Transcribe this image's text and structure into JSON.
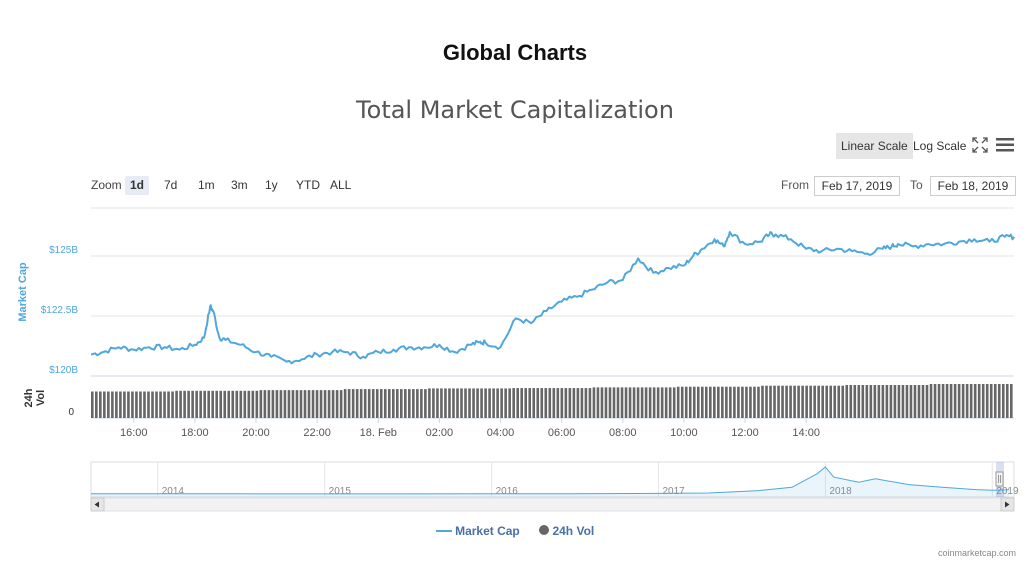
{
  "page": {
    "title": "Global Charts",
    "credit": "coinmarketcap.com"
  },
  "controls": {
    "linear_scale": "Linear Scale",
    "log_scale": "Log Scale",
    "zoom_label": "Zoom",
    "zoom_options": [
      "1d",
      "7d",
      "1m",
      "3m",
      "1y",
      "YTD",
      "ALL"
    ],
    "zoom_selected": "1d",
    "from_label": "From",
    "to_label": "To",
    "from_value": "Feb 17, 2019",
    "to_value": "Feb 18, 2019"
  },
  "colors": {
    "line": "#4fa7dc",
    "bar": "#666666",
    "axis_text": "#4fa7dc",
    "legend_text": "#4a6fa5",
    "scale_active_bg": "#e6e6e6",
    "zoom_active_bg": "#e6ebf5"
  },
  "icons": [
    "fullscreen-icon",
    "menu-icon",
    "scroll-left-icon",
    "scroll-right-icon"
  ],
  "chart_data": {
    "type": "line",
    "title": "Total Market Capitalization",
    "ylabel": "Market Cap",
    "ylabel2": "24h Vol",
    "y_ticks": [
      "$120B",
      "$122.5B",
      "$125B"
    ],
    "ylim": [
      120000000000,
      127000000000
    ],
    "vol_ticks": [
      "0"
    ],
    "x_ticks": [
      "16:00",
      "18:00",
      "20:00",
      "22:00",
      "18. Feb",
      "02:00",
      "04:00",
      "06:00",
      "08:00",
      "10:00",
      "12:00",
      "14:00"
    ],
    "series": [
      {
        "name": "Market Cap",
        "x_hours": [
          14.6,
          15.0,
          15.5,
          16.0,
          16.5,
          17.0,
          17.5,
          18.0,
          18.3,
          18.5,
          18.6,
          18.8,
          19.0,
          19.5,
          20.0,
          20.5,
          21.0,
          21.5,
          22.0,
          22.5,
          23.0,
          23.5,
          24.0,
          24.5,
          25.0,
          25.5,
          26.0,
          26.5,
          27.0,
          27.3,
          27.5,
          28.0,
          28.5,
          29.0,
          29.5,
          30.0,
          30.5,
          31.0,
          31.5,
          32.0,
          32.5,
          33.0,
          33.5,
          34.0,
          34.3,
          34.6,
          35.0,
          35.3,
          35.5,
          36.0,
          36.5,
          36.8,
          37.0,
          37.5,
          38.0,
          38.5,
          39.0,
          39.5,
          40.0,
          40.5,
          40.8,
          41.0,
          41.5,
          42.0,
          42.5,
          43.0,
          43.5,
          44.0,
          44.5,
          44.8
        ],
        "values_billion": [
          120.9,
          121.0,
          121.2,
          121.1,
          121.2,
          121.2,
          121.1,
          121.3,
          121.6,
          122.9,
          122.7,
          121.6,
          121.5,
          121.3,
          121.0,
          120.8,
          120.6,
          120.7,
          120.9,
          121.0,
          121.0,
          120.8,
          121.0,
          121.1,
          121.2,
          121.2,
          121.3,
          121.0,
          121.3,
          121.4,
          121.4,
          121.2,
          122.4,
          122.2,
          122.7,
          123.1,
          123.3,
          123.6,
          123.9,
          124.0,
          124.9,
          124.3,
          124.5,
          124.6,
          125.0,
          125.3,
          125.7,
          125.4,
          126.0,
          125.5,
          125.6,
          125.9,
          125.9,
          125.7,
          125.3,
          125.2,
          125.3,
          125.2,
          125.1,
          125.3,
          125.4,
          125.5,
          125.4,
          125.5,
          125.5,
          125.6,
          125.7,
          125.6,
          125.8,
          125.8
        ],
        "values": [
          120900000000,
          121000000000,
          121200000000,
          121100000000,
          121200000000,
          121200000000,
          121100000000,
          121300000000,
          121600000000,
          122900000000,
          122700000000,
          121600000000,
          121500000000,
          121300000000,
          121000000000,
          120800000000,
          120600000000,
          120700000000,
          120900000000,
          121000000000,
          121000000000,
          120800000000,
          121000000000,
          121100000000,
          121200000000,
          121200000000,
          121300000000,
          121000000000,
          121300000000,
          121400000000,
          121400000000,
          121200000000,
          122400000000,
          122200000000,
          122700000000,
          123100000000,
          123300000000,
          123600000000,
          123900000000,
          124000000000,
          124900000000,
          124300000000,
          124500000000,
          124600000000,
          125000000000,
          125300000000,
          125700000000,
          125400000000,
          126000000000,
          125500000000,
          125600000000,
          125900000000,
          125900000000,
          125700000000,
          125300000000,
          125200000000,
          125300000000,
          125200000000,
          125100000000,
          125300000000,
          125400000000,
          125500000000,
          125400000000,
          125500000000,
          125500000000,
          125600000000,
          125700000000,
          125600000000,
          125800000000,
          125800000000
        ]
      },
      {
        "name": "24h Vol",
        "type": "bar",
        "start_hour": 14.6,
        "end_hour": 44.8,
        "relative_values": [
          0.78,
          0.8,
          0.82,
          0.85,
          0.87,
          0.88,
          0.9,
          0.92,
          0.95,
          0.97,
          1.0
        ]
      }
    ],
    "navigator": {
      "x_labels": [
        "2014",
        "2015",
        "2016",
        "2017",
        "2018",
        "2019"
      ],
      "x_years": [
        2013.6,
        2014.0,
        2014.5,
        2015.0,
        2015.5,
        2016.0,
        2016.5,
        2017.0,
        2017.3,
        2017.6,
        2017.8,
        2017.95,
        2018.0,
        2018.05,
        2018.2,
        2018.3,
        2018.5,
        2018.7,
        2018.9,
        2019.0,
        2019.1
      ],
      "values_billion": [
        10,
        10,
        5,
        3,
        4,
        7,
        10,
        18,
        30,
        100,
        200,
        600,
        800,
        500,
        350,
        450,
        280,
        200,
        130,
        110,
        125
      ]
    },
    "legend": [
      "Market Cap",
      "24h Vol"
    ],
    "legend_position": "bottom"
  }
}
